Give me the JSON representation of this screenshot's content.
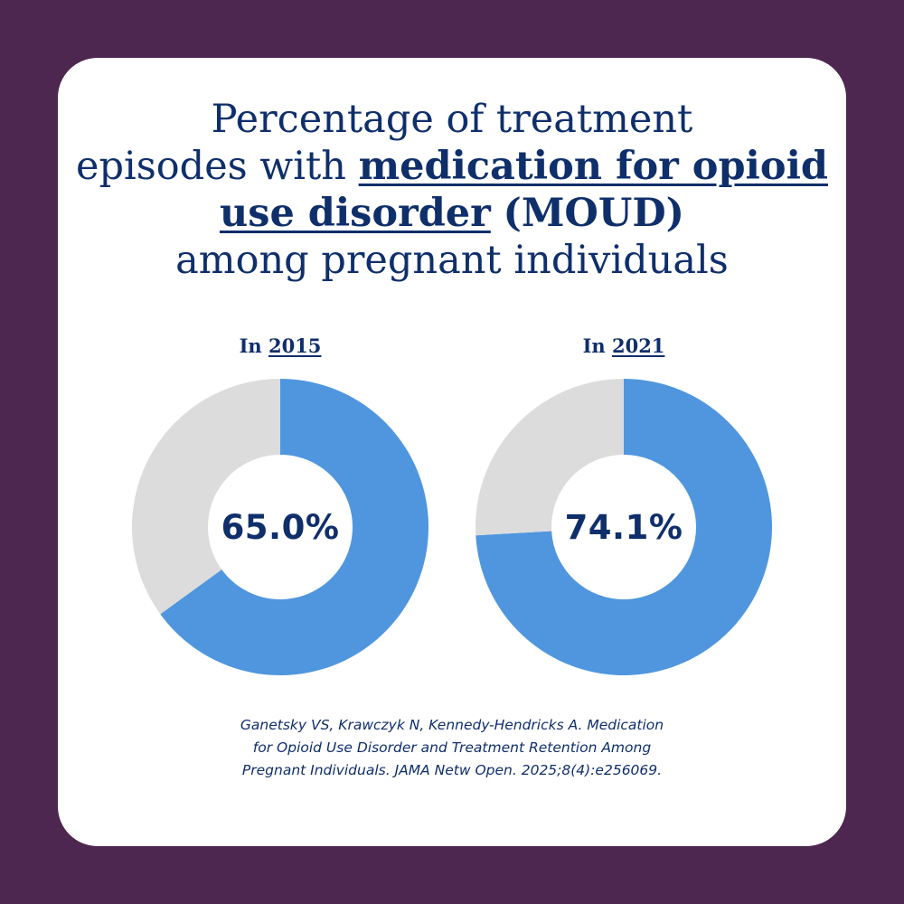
{
  "colors": {
    "background": "#4e2751",
    "card": "#ffffff",
    "text": "#0f2f6b",
    "moud": "#4f96de",
    "other": "#dcdcdc"
  },
  "title": {
    "line1": "Percentage of treatment",
    "line2_plain": "episodes with ",
    "emphasis": "medication for opioid use disorder",
    "moud": "(MOUD)",
    "line4": "among pregnant individuals"
  },
  "chart_data": [
    {
      "type": "pie",
      "label_prefix": "In",
      "year": "2015",
      "value": 65.0,
      "value_label": "65.0%",
      "slices": [
        {
          "name": "MOUD",
          "value": 65.0,
          "color": "#4f96de"
        },
        {
          "name": "",
          "value": 35.0,
          "color": "#dcdcdc"
        }
      ]
    },
    {
      "type": "pie",
      "label_prefix": "In",
      "year": "2021",
      "value": 74.1,
      "value_label": "74.1%",
      "slices": [
        {
          "name": "MOUD",
          "value": 74.1,
          "color": "#4f96de"
        },
        {
          "name": "",
          "value": 25.9,
          "color": "#dcdcdc"
        }
      ]
    }
  ],
  "citation": {
    "line1": "Ganetsky VS, Krawczyk N, Kennedy-Hendricks A. Medication",
    "line2": "for Opioid Use Disorder and Treatment Retention Among",
    "line3": "Pregnant Individuals. JAMA Netw Open. 2025;8(4):e256069."
  }
}
